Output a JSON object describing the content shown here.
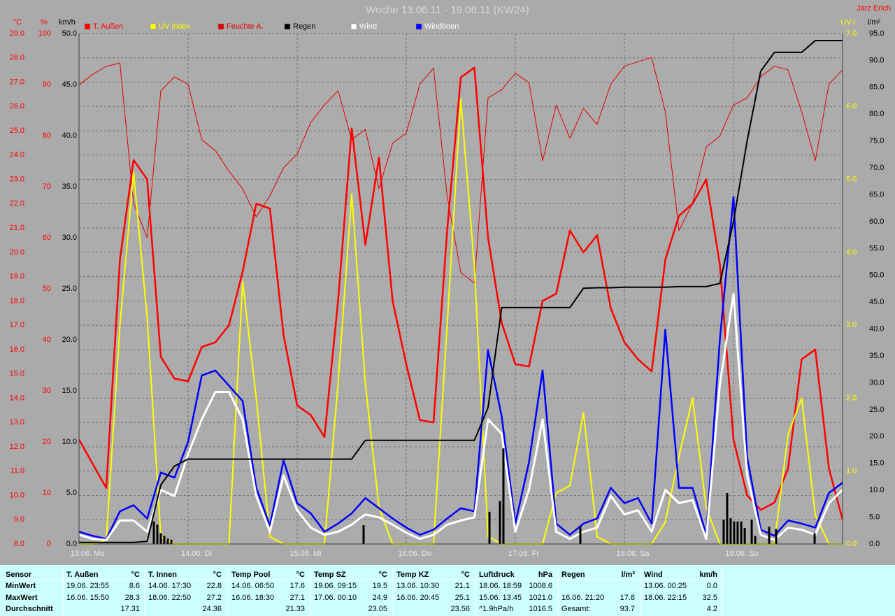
{
  "chart_data": {
    "type": "line",
    "title": "Woche 13.06.11 - 19.06.11 (KW24)",
    "author": "Jarz Erich",
    "xlim": [
      0,
      7
    ],
    "xticks": [
      {
        "value": 0,
        "label": "13.06. Mo"
      },
      {
        "value": 1,
        "label": "14.06. Di"
      },
      {
        "value": 2,
        "label": "15.06. Mi"
      },
      {
        "value": 3,
        "label": "16.06. Do"
      },
      {
        "value": 4,
        "label": "17.06. Fr"
      },
      {
        "value": 5,
        "label": "18.06. Sa"
      },
      {
        "value": 6,
        "label": "19.06. So"
      }
    ],
    "axes": [
      {
        "label": "°C",
        "color": "#ff0000",
        "grid": true,
        "ylim": [
          8,
          29
        ],
        "yticks": [
          {
            "value": 8,
            "label": "8.0"
          },
          {
            "value": 9,
            "label": "9.0"
          },
          {
            "value": 10,
            "label": "10.0"
          },
          {
            "value": 11,
            "label": "11.0"
          },
          {
            "value": 12,
            "label": "12.0"
          },
          {
            "value": 13,
            "label": "13.0"
          },
          {
            "value": 14,
            "label": "14.0"
          },
          {
            "value": 15,
            "label": "15.0"
          },
          {
            "value": 16,
            "label": "16.0"
          },
          {
            "value": 17,
            "label": "17.0"
          },
          {
            "value": 18,
            "label": "18.0"
          },
          {
            "value": 19,
            "label": "19.0"
          },
          {
            "value": 20,
            "label": "20.0"
          },
          {
            "value": 21,
            "label": "21.0"
          },
          {
            "value": 22,
            "label": "22.0"
          },
          {
            "value": 23,
            "label": "23.0"
          },
          {
            "value": 24,
            "label": "24.0"
          },
          {
            "value": 25,
            "label": "25.0"
          },
          {
            "value": 26,
            "label": "26.0"
          },
          {
            "value": 27,
            "label": "27.0"
          },
          {
            "value": 28,
            "label": "28.0"
          },
          {
            "value": 29,
            "label": "29.0"
          }
        ]
      },
      {
        "label": "%",
        "color": "#ff0000",
        "grid": false,
        "ylim": [
          0,
          100
        ],
        "yticks": [
          0,
          10,
          20,
          30,
          40,
          50,
          60,
          70,
          80,
          90,
          100
        ]
      },
      {
        "label": "km/h",
        "color": "#000000",
        "grid": false,
        "ylim": [
          0,
          50
        ],
        "yticks": [
          {
            "value": 0,
            "label": "0.0"
          },
          {
            "value": 5,
            "label": "5.0"
          },
          {
            "value": 10,
            "label": "10.0"
          },
          {
            "value": 15,
            "label": "15.0"
          },
          {
            "value": 20,
            "label": "20.0"
          },
          {
            "value": 25,
            "label": "25.0"
          },
          {
            "value": 30,
            "label": "30.0"
          },
          {
            "value": 35,
            "label": "35.0"
          },
          {
            "value": 40,
            "label": "40.0"
          },
          {
            "value": 45,
            "label": "45.0"
          },
          {
            "value": 50,
            "label": "50.0"
          }
        ]
      },
      {
        "label": "UV-I",
        "color": "#ffff00",
        "grid": false,
        "ylim": [
          0,
          7
        ],
        "yticks": [
          {
            "value": 0,
            "label": "0.0"
          },
          {
            "value": 1,
            "label": "1.0"
          },
          {
            "value": 2,
            "label": "2.0"
          },
          {
            "value": 3,
            "label": "3.0"
          },
          {
            "value": 4,
            "label": "4.0"
          },
          {
            "value": 5,
            "label": "5.0"
          },
          {
            "value": 6,
            "label": "6.0"
          },
          {
            "value": 7,
            "label": "7.0"
          }
        ]
      },
      {
        "label": "l/m²",
        "color": "#000000",
        "grid": false,
        "ylim": [
          0,
          95
        ],
        "yticks": [
          {
            "value": 0,
            "label": "0.0"
          },
          {
            "value": 5,
            "label": "5.0"
          },
          {
            "value": 10,
            "label": "10.0"
          },
          {
            "value": 15,
            "label": "15.0"
          },
          {
            "value": 20,
            "label": "20.0"
          },
          {
            "value": 25,
            "label": "25.0"
          },
          {
            "value": 30,
            "label": "30.0"
          },
          {
            "value": 35,
            "label": "35.0"
          },
          {
            "value": 40,
            "label": "40.0"
          },
          {
            "value": 45,
            "label": "45.0"
          },
          {
            "value": 50,
            "label": "50.0"
          },
          {
            "value": 55,
            "label": "55.0"
          },
          {
            "value": 60,
            "label": "60.0"
          },
          {
            "value": 65,
            "label": "65.0"
          },
          {
            "value": 70,
            "label": "70.0"
          },
          {
            "value": 75,
            "label": "75.0"
          },
          {
            "value": 80,
            "label": "80.0"
          },
          {
            "value": 85,
            "label": "85.0"
          },
          {
            "value": 90,
            "label": "90.0"
          },
          {
            "value": 95,
            "label": "95.0"
          }
        ]
      }
    ],
    "x": [
      0,
      0.125,
      0.25,
      0.375,
      0.5,
      0.625,
      0.75,
      0.875,
      1,
      1.125,
      1.25,
      1.375,
      1.5,
      1.625,
      1.75,
      1.875,
      2,
      2.125,
      2.25,
      2.375,
      2.5,
      2.625,
      2.75,
      2.875,
      3,
      3.125,
      3.25,
      3.375,
      3.5,
      3.625,
      3.75,
      3.875,
      4,
      4.125,
      4.25,
      4.375,
      4.5,
      4.625,
      4.75,
      4.875,
      5,
      5.125,
      5.25,
      5.375,
      5.5,
      5.625,
      5.75,
      5.875,
      6,
      6.125,
      6.25,
      6.375,
      6.5,
      6.625,
      6.75,
      6.875,
      7
    ],
    "series": [
      {
        "name": "T. Außen",
        "color": "#ff0000",
        "axis": 0,
        "values": [
          12.3,
          11.3,
          10.3,
          19.7,
          23.8,
          23.0,
          15.7,
          14.8,
          14.7,
          16.1,
          16.3,
          17.0,
          19.2,
          22.0,
          21.8,
          16.6,
          13.7,
          13.3,
          12.4,
          18.0,
          25.1,
          20.3,
          23.9,
          18.0,
          15.4,
          13.1,
          13.0,
          20.9,
          27.2,
          27.6,
          20.6,
          17.1,
          15.4,
          15.3,
          18.0,
          18.3,
          20.9,
          20.0,
          20.7,
          17.7,
          16.3,
          15.6,
          15.1,
          19.7,
          21.5,
          22.0,
          23.0,
          19.5,
          12.3,
          10.0,
          9.4,
          9.7,
          11.1,
          15.6,
          16.0,
          11.1,
          9.0
        ]
      },
      {
        "name": "UV Index",
        "color": "#ffff00",
        "axis": 3,
        "values": [
          0,
          0,
          0.05,
          3.0,
          5.1,
          3.1,
          0.1,
          0,
          0,
          0,
          0,
          0,
          3.6,
          2.0,
          0.1,
          0,
          0,
          0,
          0,
          2.2,
          4.8,
          2.2,
          0.5,
          0,
          0,
          0,
          0,
          3.0,
          6.1,
          3.8,
          0.1,
          0,
          0,
          0,
          0,
          0.7,
          0.8,
          1.8,
          0.1,
          0,
          0,
          0,
          0,
          0.3,
          1.2,
          2.0,
          0.5,
          0,
          0,
          0,
          0,
          0,
          1.5,
          2.0,
          0.4,
          0,
          0
        ]
      },
      {
        "name": "Feuchte A.",
        "color": "#e00000",
        "axis": 1,
        "values": [
          89.9,
          92,
          93.6,
          94.2,
          66.8,
          60,
          88.8,
          91.5,
          90.1,
          79.2,
          77.1,
          73,
          69.6,
          64.1,
          68.2,
          73.7,
          76.4,
          82.6,
          86,
          88.8,
          79.2,
          81.2,
          69.6,
          78.5,
          80.5,
          90.1,
          93.2,
          68.2,
          53.2,
          51.1,
          87.4,
          89,
          92.2,
          90.4,
          75.1,
          86,
          79.5,
          85.3,
          82.2,
          90.1,
          93.6,
          94.5,
          95.3,
          84.7,
          61.4,
          66.8,
          77.8,
          79.9,
          86,
          87.4,
          91.5,
          93.6,
          92.9,
          84.7,
          75.1,
          90.1,
          92.9
        ]
      },
      {
        "name": "Regen",
        "color": "#000000",
        "axis": 4,
        "values": [
          0.3,
          0.3,
          0.3,
          0.3,
          0.3,
          0.5,
          11.0,
          14.5,
          15.8,
          15.8,
          15.8,
          15.8,
          15.8,
          15.8,
          15.8,
          15.8,
          15.8,
          15.8,
          15.8,
          15.8,
          15.8,
          19.3,
          19.3,
          19.3,
          19.3,
          19.3,
          19.3,
          19.3,
          19.3,
          19.3,
          25.4,
          44.0,
          44.0,
          44.0,
          44.0,
          44.0,
          44.0,
          47.6,
          47.7,
          47.7,
          47.8,
          47.8,
          47.8,
          47.8,
          47.9,
          47.9,
          47.9,
          48.5,
          60,
          75,
          88,
          91.5,
          91.5,
          91.5,
          93.7,
          93.7,
          93.7
        ],
        "bars": {
          "x": [
            0.686,
            0.718,
            0.75,
            0.782,
            0.814,
            0.846,
            2.609,
            3.763,
            3.859,
            3.891,
            4.596,
            5.91,
            5.942,
            5.974,
            6.006,
            6.038,
            6.071,
            6.103,
            6.167,
            6.199,
            6.327,
            6.391,
            6.744
          ],
          "values": [
            4.2,
            3.6,
            2.0,
            1.5,
            1.0,
            0.8,
            3.5,
            6.0,
            8.0,
            17.8,
            3.2,
            4.5,
            9.5,
            4.8,
            4.2,
            4.2,
            4.2,
            3.0,
            4.5,
            1.5,
            3.2,
            2.8,
            2.0
          ]
        }
      },
      {
        "name": "Wind",
        "color": "#ffffff",
        "axis": 2,
        "values": [
          0.9,
          0.5,
          0.4,
          2.3,
          2.3,
          1.2,
          5.3,
          4.7,
          8.8,
          12.2,
          14.9,
          14.9,
          12.2,
          4.7,
          1.2,
          6.7,
          3.3,
          1.6,
          0.9,
          1.2,
          1.9,
          2.9,
          2.6,
          1.9,
          1.1,
          0.5,
          0.9,
          1.9,
          2.3,
          2.6,
          12.2,
          10.8,
          1.2,
          5.3,
          12.2,
          1.2,
          0.5,
          1.2,
          1.6,
          4.7,
          2.9,
          3.3,
          1.2,
          5.3,
          4.0,
          4.3,
          0.5,
          15.6,
          24.5,
          6.7,
          0.9,
          0.4,
          1.6,
          1.4,
          0.9,
          4.0,
          5.3
        ]
      },
      {
        "name": "Windböen",
        "color": "#0000ff",
        "axis": 2,
        "values": [
          1.2,
          0.8,
          0.5,
          3.2,
          3.8,
          2.5,
          7.0,
          6.5,
          10.0,
          16.5,
          17.0,
          15.5,
          14.0,
          5.5,
          1.8,
          8.2,
          4.0,
          3.0,
          1.2,
          2.0,
          3.0,
          4.5,
          3.5,
          2.5,
          1.6,
          0.9,
          1.4,
          2.5,
          3.5,
          3.2,
          19.0,
          12.5,
          2.0,
          8.0,
          17.0,
          2.0,
          0.9,
          2.0,
          2.5,
          5.5,
          4.0,
          4.5,
          2.0,
          21.0,
          5.5,
          5.5,
          0.9,
          20.0,
          34.0,
          8.5,
          1.4,
          0.8,
          2.3,
          2.0,
          1.6,
          5.0,
          6.0
        ]
      }
    ]
  },
  "table": {
    "header": "Sensor",
    "row_labels": [
      "MinWert",
      "MaxWert",
      "Durchschnitt"
    ],
    "columns": [
      {
        "name": "T. Außen",
        "unit": "°C",
        "min": {
          "time": "19.06. 23:55",
          "value": "8.6"
        },
        "max": {
          "time": "16.06. 15:50",
          "value": "28.3"
        },
        "avg": {
          "value": "17.31"
        }
      },
      {
        "name": "T. Innen",
        "unit": "°C",
        "min": {
          "time": "14.06. 17:30",
          "value": "22.8"
        },
        "max": {
          "time": "18.06. 22:50",
          "value": "27.2"
        },
        "avg": {
          "value": "24.36"
        }
      },
      {
        "name": "Temp Pool",
        "unit": "°C",
        "min": {
          "time": "14.06. 06:50",
          "value": "17.6"
        },
        "max": {
          "time": "16.06. 18:30",
          "value": "27.1"
        },
        "avg": {
          "value": "21.33"
        }
      },
      {
        "name": "Temp SZ",
        "unit": "°C",
        "min": {
          "time": "19.06. 09:15",
          "value": "19.5"
        },
        "max": {
          "time": "17.06. 00:10",
          "value": "24.9"
        },
        "avg": {
          "value": "23.05"
        }
      },
      {
        "name": "Temp KZ",
        "unit": "°C",
        "min": {
          "time": "13.06. 10:30",
          "value": "21.1"
        },
        "max": {
          "time": "16.06. 20:45",
          "value": "25.1"
        },
        "avg": {
          "value": "23.56"
        }
      },
      {
        "name": "Luftdruck",
        "unit": "hPa",
        "min": {
          "time": "18.06. 18:59",
          "value": "1008.6"
        },
        "max": {
          "time": "15.06. 13:45",
          "value": "1021.0"
        },
        "avg": {
          "time": "^1.9hPa/h",
          "value": "1016.5"
        }
      },
      {
        "name": "Regen",
        "unit": "l/m²",
        "max": {
          "time": "16.06. 21:20",
          "value": "17.8"
        },
        "avg": {
          "time": "Gesamt:",
          "value": "93.7"
        }
      },
      {
        "name": "Wind",
        "unit": "km/h",
        "min": {
          "time": "13.06. 00:25",
          "value": "0.0"
        },
        "max": {
          "time": "18.06. 22:15",
          "value": "32.5"
        },
        "avg": {
          "value": "4.2"
        }
      }
    ]
  }
}
